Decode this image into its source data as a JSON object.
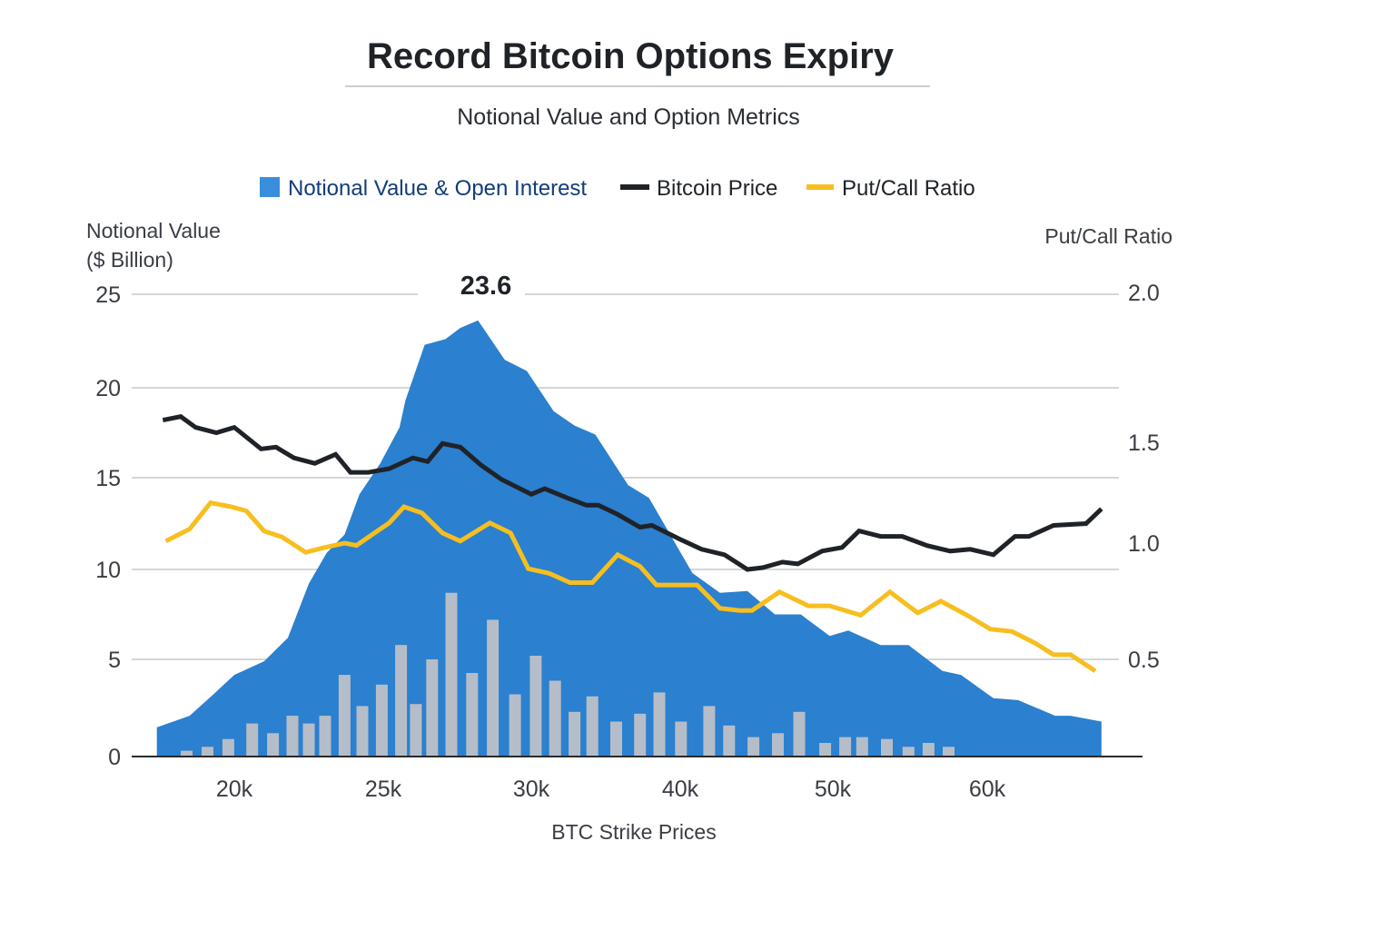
{
  "chart_data": {
    "type": "area+bar+line",
    "title": "Record Bitcoin Options Expiry",
    "subtitle": "Notional Value and Option Metrics",
    "xlabel": "BTC Strike Prices",
    "ylabel_left": "Notional Value\n($ Billion)",
    "ylabel_left_lines": [
      "Notional Value",
      "($ Billion)"
    ],
    "ylabel_right": "Put/Call Ratio",
    "x_ticks": [
      {
        "k": 20,
        "label": "20k"
      },
      {
        "k": 25,
        "label": "25k"
      },
      {
        "k": 30,
        "label": "30k"
      },
      {
        "k": 40,
        "label": "40k"
      },
      {
        "k": 50,
        "label": "50k"
      },
      {
        "k": 60,
        "label": "60k"
      }
    ],
    "y_left_ticks": [
      0,
      5,
      10,
      15,
      20,
      25
    ],
    "y_left_tick_labels": [
      "0",
      "5",
      "10",
      "15",
      "20",
      "25"
    ],
    "y_right_ticks": [
      0.5,
      1.0,
      1.5,
      2.0
    ],
    "y_right_tick_labels": [
      "0.5",
      "1.0",
      "1.5",
      "2.0"
    ],
    "ylim_left": [
      0,
      25
    ],
    "grid": true,
    "legend_position": "top",
    "legend": [
      {
        "label": "Notional Value & Open Interest",
        "color": "#3a8fdc",
        "marker": "square"
      },
      {
        "label": "Bitcoin Price",
        "color": "#1f2328",
        "marker": "line"
      },
      {
        "label": "Put/Call Ratio",
        "color": "#f7be1f",
        "marker": "line"
      }
    ],
    "annotations": [
      {
        "label": "23.6",
        "x": 28.2,
        "y": 23.6
      }
    ],
    "colors": {
      "area": "#2b80cf",
      "bars": "#b5bdc9",
      "btc": "#1f2328",
      "pcr": "#f7be1f",
      "grid": "#c8c8c8",
      "axis": "#2a2a2a",
      "legend_text_blue": "#123d7a"
    },
    "series": [
      {
        "name": "Notional Value & Open Interest",
        "type": "area",
        "axis": "left",
        "x": [
          17.4,
          18.5,
          19.3,
          20,
          21,
          21.8,
          22.5,
          23.1,
          23.7,
          24.2,
          24.9,
          25.55,
          25.75,
          26.4,
          27.1,
          27.6,
          28.2,
          29.1,
          29.85,
          31.5,
          32.9,
          34.3,
          36.5,
          37.9,
          40.8,
          42.6,
          44.4,
          46.2,
          47.9,
          49.8,
          51,
          53.1,
          54.9,
          57.1,
          58.3,
          60.4,
          62,
          64.4,
          65.4,
          67.4
        ],
        "values": [
          1.5,
          2.1,
          3.2,
          4.2,
          4.9,
          6.2,
          9.2,
          10.9,
          11.9,
          14.1,
          15.8,
          17.8,
          19.3,
          22.3,
          22.6,
          23.2,
          23.6,
          21.5,
          20.9,
          18.7,
          17.9,
          17.4,
          14.6,
          13.9,
          9.8,
          8.7,
          8.8,
          7.5,
          7.5,
          6.3,
          6.6,
          5.8,
          5.8,
          4.4,
          4.2,
          3.0,
          2.9,
          2.1,
          2.1,
          1.8
        ]
      },
      {
        "type": "bar",
        "axis": "left",
        "x": [
          18.4,
          19.1,
          19.8,
          20.6,
          21.3,
          21.95,
          22.5,
          23.05,
          23.7,
          24.3,
          24.95,
          25.6,
          26.1,
          26.65,
          27.3,
          28.0,
          28.7,
          29.45,
          30.3,
          31.6,
          32.9,
          34.1,
          35.7,
          37.3,
          38.6,
          40.05,
          41.9,
          43.2,
          44.8,
          46.4,
          47.8,
          49.5,
          50.8,
          51.9,
          53.5,
          54.9,
          56.2,
          57.5
        ],
        "values": [
          0.3,
          0.5,
          0.9,
          1.7,
          1.2,
          2.1,
          1.7,
          2.1,
          4.2,
          2.6,
          3.7,
          5.8,
          2.7,
          5.0,
          8.7,
          4.3,
          7.2,
          3.2,
          5.2,
          3.9,
          2.3,
          3.1,
          1.8,
          2.2,
          3.3,
          1.8,
          2.6,
          1.6,
          1.0,
          1.2,
          2.3,
          0.7,
          1.0,
          1.0,
          0.9,
          0.5,
          0.7,
          0.5
        ]
      },
      {
        "name": "Bitcoin Price",
        "type": "line",
        "axis": "left",
        "x": [
          17.6,
          18.2,
          18.7,
          19.4,
          20,
          20.9,
          21.4,
          22,
          22.7,
          23.4,
          23.9,
          24.5,
          25.2,
          26,
          26.5,
          27,
          27.6,
          28.3,
          29,
          30,
          30.9,
          32.4,
          33.7,
          34.5,
          35.8,
          37.3,
          38.1,
          40.1,
          41.4,
          42.9,
          44.4,
          45.4,
          46.7,
          47.7,
          49.3,
          50.6,
          51.7,
          53.1,
          54.5,
          56.1,
          57.6,
          58.9,
          60.4,
          61.8,
          62.7,
          64.3,
          66.4,
          67.4
        ],
        "values": [
          18.2,
          18.4,
          17.8,
          17.5,
          17.8,
          16.6,
          16.7,
          16.1,
          15.8,
          16.3,
          15.3,
          15.3,
          15.5,
          16.1,
          15.9,
          16.9,
          16.7,
          15.7,
          14.9,
          14.1,
          14.4,
          13.9,
          13.5,
          13.5,
          13.0,
          12.3,
          12.4,
          11.6,
          11.1,
          10.8,
          10.0,
          10.1,
          10.4,
          10.3,
          11.0,
          11.2,
          12.1,
          11.8,
          11.8,
          11.3,
          11.0,
          11.1,
          10.8,
          11.8,
          11.8,
          12.4,
          12.5,
          13.3
        ]
      },
      {
        "name": "Put/Call Ratio",
        "type": "line",
        "axis": "right",
        "x": [
          17.7,
          18.5,
          19.2,
          19.9,
          20.4,
          21,
          21.6,
          22.4,
          23,
          23.7,
          24.1,
          24.7,
          25.2,
          25.7,
          26.3,
          27,
          27.6,
          28.6,
          29.3,
          29.9,
          31.2,
          32.6,
          34.1,
          35.8,
          37.3,
          38.4,
          41.1,
          42.6,
          43.9,
          44.7,
          46.5,
          48.4,
          49.8,
          51.8,
          53.7,
          55.5,
          57,
          58.7,
          60.2,
          61.6,
          63.1,
          64.3,
          65.4,
          67
        ],
        "values": [
          1.01,
          1.07,
          1.2,
          1.18,
          1.16,
          1.06,
          1.03,
          0.96,
          0.98,
          1.0,
          0.99,
          1.05,
          1.1,
          1.18,
          1.15,
          1.05,
          1.01,
          1.1,
          1.05,
          0.89,
          0.87,
          0.83,
          0.83,
          0.95,
          0.9,
          0.82,
          0.82,
          0.72,
          0.71,
          0.71,
          0.79,
          0.73,
          0.73,
          0.69,
          0.79,
          0.7,
          0.75,
          0.69,
          0.63,
          0.62,
          0.57,
          0.52,
          0.52,
          0.45
        ]
      }
    ]
  }
}
